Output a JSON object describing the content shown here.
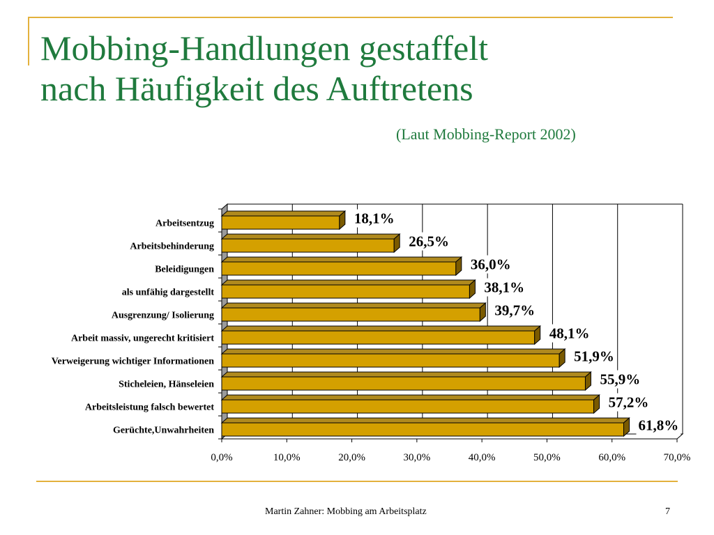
{
  "slide": {
    "title_line1": "Mobbing-Handlungen gestaffelt",
    "title_line2": "nach Häufigkeit des Auftretens",
    "subtitle": "(Laut Mobbing-Report  2002)",
    "footer_author": "Martin Zahner: Mobbing am Arbeitsplatz",
    "page_number": "7"
  },
  "chart_data": {
    "type": "bar",
    "orientation": "horizontal",
    "style": "3d",
    "categories": [
      "Arbeitsentzug",
      "Arbeitsbehinderung",
      "Beleidigungen",
      "als unfähig dargestellt",
      "Ausgrenzung/ Isolierung",
      "Arbeit massiv, ungerecht kritisiert",
      "Verweigerung wichtiger Informationen",
      "Sticheleien, Hänseleien",
      "Arbeitsleistung falsch bewertet",
      "Gerüchte,Unwahrheiten"
    ],
    "values": [
      18.1,
      26.5,
      36.0,
      38.1,
      39.7,
      48.1,
      51.9,
      55.9,
      57.2,
      61.8
    ],
    "data_labels": [
      "18,1%",
      "26,5%",
      "36,0%",
      "38,1%",
      "39,7%",
      "48,1%",
      "51,9%",
      "55,9%",
      "57,2%",
      "61,8%"
    ],
    "x_ticks": [
      0,
      10,
      20,
      30,
      40,
      50,
      60,
      70
    ],
    "x_tick_labels": [
      "0,0%",
      "10,0%",
      "20,0%",
      "30,0%",
      "40,0%",
      "50,0%",
      "60,0%",
      "70,0%"
    ],
    "xlim": [
      0,
      70
    ],
    "grid": "vertical",
    "legend": "none",
    "bar_color": "#D4A000",
    "bar_side_color": "#7A5A00",
    "bar_top_color": "#B08A1E"
  },
  "colors": {
    "title": "#1F7A3D",
    "accent_line": "#E3B13C"
  }
}
